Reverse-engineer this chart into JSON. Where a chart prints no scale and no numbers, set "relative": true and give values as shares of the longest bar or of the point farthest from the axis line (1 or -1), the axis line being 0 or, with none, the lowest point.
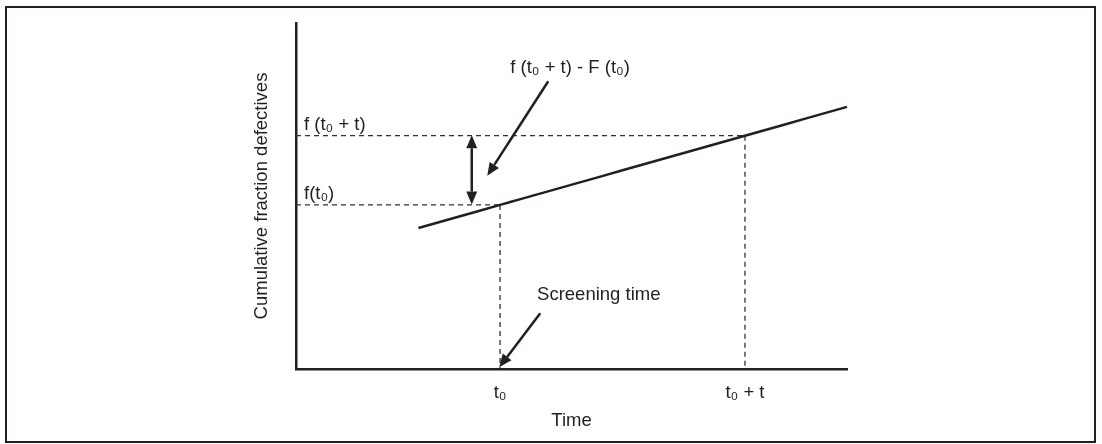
{
  "chart_data": {
    "type": "line",
    "xlabel": "Time",
    "ylabel": "Cumulative fraction defectives",
    "categories": [
      null,
      null,
      null,
      null,
      null,
      null,
      null,
      null,
      null,
      null,
      "t₀",
      null,
      null,
      null,
      null,
      null,
      null,
      null,
      null,
      null,
      null,
      null,
      "t₀ + t",
      null,
      null,
      null,
      null,
      null
    ],
    "values": [
      null,
      null,
      null,
      null,
      null,
      null,
      0.538,
      0.56,
      0.582,
      0.604,
      0.626,
      0.648,
      0.67,
      0.692,
      0.714,
      0.736,
      0.758,
      0.78,
      0.802,
      0.824,
      0.846,
      0.868,
      0.89,
      0.912,
      0.934,
      0.956,
      0.978,
      1
    ],
    "color": "#231f20",
    "relative": true,
    "tick_labels": "x",
    "ref_lines": [
      {
        "axis": "y",
        "value": 0.626,
        "label": "f(t₀)",
        "line_style": "dashed",
        "color": "#333333"
      },
      {
        "axis": "y",
        "value": 0.89,
        "label": "f (t₀ + t)",
        "line_style": "dashed",
        "color": "#333333"
      }
    ],
    "annotations": [
      "f (t₀ + t) - F (t₀)",
      "Screening time"
    ]
  }
}
